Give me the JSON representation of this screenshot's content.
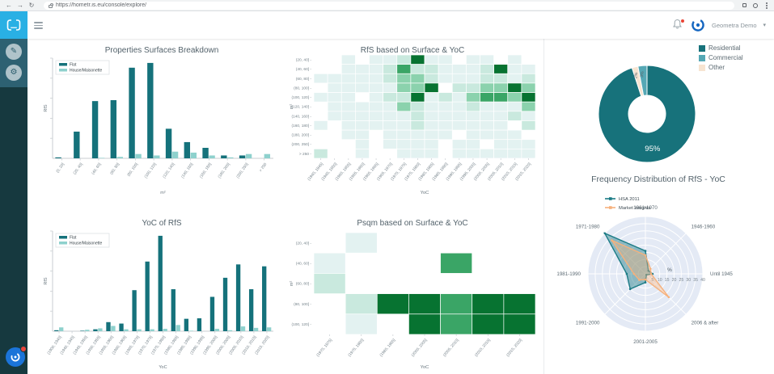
{
  "browser": {
    "url": "https://hometr.is.eu/console/explore/"
  },
  "header": {
    "user_label": "Geometra Demo",
    "menu_caret": "▾"
  },
  "chart_data": [
    {
      "id": "surfaces-breakdown",
      "type": "bar",
      "title": "Properties Surfaces Breakdown",
      "xlabel": "m²",
      "ylabel": "RfS",
      "ylim": [
        0,
        105
      ],
      "categories": [
        "(0, 20]",
        "(20, 40]",
        "(40, 60]",
        "(60, 80]",
        "(80, 100]",
        "(100, 120]",
        "(120, 140]",
        "(140, 160]",
        "(160, 180]",
        "(180, 200]",
        "(200, 250]",
        "> 250"
      ],
      "series": [
        {
          "name": "Flat",
          "color": "#15727b",
          "values": [
            1,
            28,
            60,
            61,
            95,
            100,
            31,
            17,
            11,
            3,
            3,
            0
          ]
        },
        {
          "name": "House/Maisonette",
          "color": "#8ed1cd",
          "values": [
            0,
            0,
            0.5,
            1.5,
            4.5,
            3,
            7,
            6,
            3,
            1,
            4.5,
            4.5
          ]
        }
      ]
    },
    {
      "id": "rfs-surface-yoc",
      "type": "heatmap",
      "title": "RfS based on Surface & YoC",
      "xlabel": "YoC",
      "ylabel": "m²",
      "rows": [
        "(20, 40]",
        "(40, 60]",
        "(60, 80]",
        "(80, 100]",
        "(100, 120]",
        "(120, 140]",
        "(140, 160]",
        "(160, 180]",
        "(180, 200]",
        "(200, 250]",
        "> 250"
      ],
      "cols": [
        "(1940, 1945]",
        "(1945, 1950]",
        "(1950, 1955]",
        "(1955, 1960]",
        "(1960, 1965]",
        "(1965, 1970]",
        "(1970, 1975]",
        "(1975, 1980]",
        "(1980, 1985]",
        "(1985, 1990]",
        "(1990, 1995]",
        "(1995, 2000]",
        "(2000, 2005]",
        "(2005, 2010]",
        "(2010, 2015]",
        "(2015, 2020]"
      ],
      "palette": [
        "#ffffff",
        "#e3f2f1",
        "#c9e9de",
        "#8bd2ad",
        "#3aa566",
        "#077331"
      ],
      "values": [
        [
          0,
          0,
          1,
          0,
          1,
          1,
          2,
          5,
          1,
          1,
          0,
          1,
          1,
          0,
          1,
          0
        ],
        [
          0,
          0,
          1,
          1,
          1,
          2,
          4,
          2,
          2,
          1,
          1,
          1,
          2,
          5,
          1,
          1
        ],
        [
          1,
          1,
          1,
          1,
          1,
          2,
          3,
          3,
          2,
          1,
          1,
          1,
          2,
          2,
          1,
          2
        ],
        [
          0,
          1,
          1,
          1,
          1,
          1,
          3,
          3,
          5,
          0,
          2,
          2,
          3,
          3,
          5,
          3
        ],
        [
          1,
          1,
          1,
          0,
          1,
          2,
          2,
          5,
          1,
          2,
          1,
          3,
          4,
          4,
          3,
          5
        ],
        [
          0,
          1,
          1,
          1,
          1,
          1,
          3,
          2,
          1,
          1,
          1,
          2,
          1,
          1,
          1,
          3
        ],
        [
          0,
          1,
          1,
          1,
          1,
          1,
          1,
          2,
          1,
          1,
          1,
          1,
          1,
          1,
          2,
          1
        ],
        [
          1,
          0,
          1,
          1,
          1,
          1,
          1,
          2,
          1,
          1,
          1,
          1,
          1,
          1,
          0,
          2
        ],
        [
          0,
          0,
          1,
          1,
          0,
          1,
          1,
          1,
          1,
          1,
          0,
          1,
          1,
          1,
          1,
          0
        ],
        [
          0,
          0,
          0,
          1,
          0,
          1,
          1,
          1,
          1,
          0,
          1,
          1,
          0,
          1,
          1,
          1
        ],
        [
          2,
          0,
          0,
          1,
          0,
          0,
          1,
          1,
          1,
          0,
          1,
          1,
          1,
          1,
          1,
          1
        ]
      ]
    },
    {
      "id": "property-type-donut",
      "type": "pie",
      "labels": [
        "Residential",
        "Commercial",
        "Other"
      ],
      "values": [
        95,
        3,
        2
      ],
      "colors": [
        "#17727b",
        "#55a8b5",
        "#f7e4d1"
      ]
    },
    {
      "id": "yoc-of-rfs",
      "type": "bar",
      "title": "YoC of RfS",
      "xlabel": "YoC",
      "ylabel": "RfS",
      "ylim": [
        0,
        105
      ],
      "categories": [
        "(1900, 1940]",
        "(1940, 1945]",
        "(1945, 1950]",
        "(1950, 1955]",
        "(1955, 1960]",
        "(1960, 1965]",
        "(1965, 1970]",
        "(1970, 1975]",
        "(1975, 1980]",
        "(1980, 1985]",
        "(1985, 1990]",
        "(1990, 1995]",
        "(1995, 2000]",
        "(2000, 2005]",
        "(2005, 2010]",
        "(2010, 2015]",
        "(2015, 2020]"
      ],
      "series": [
        {
          "name": "Flat",
          "color": "#15727b",
          "values": [
            1,
            0,
            0.5,
            2,
            9.5,
            8,
            43,
            73,
            100,
            44,
            13,
            13.5,
            36,
            56,
            70,
            44,
            68
          ]
        },
        {
          "name": "House/Maisonette",
          "color": "#8ed1cd",
          "values": [
            4,
            0,
            1.5,
            3,
            5.5,
            2,
            2,
            2,
            2.5,
            6.5,
            0.5,
            0,
            2.5,
            1,
            5,
            3.5,
            4
          ]
        }
      ]
    },
    {
      "id": "psqm-surface-yoc",
      "type": "heatmap",
      "title": "Psqm based on Surface & YoC",
      "xlabel": "YoC",
      "ylabel": "m²",
      "rows": [
        "(20, 40]",
        "(40, 60]",
        "(60, 80]",
        "(80, 100]",
        "(100, 120]"
      ],
      "cols": [
        "(1970, 1975]",
        "(1975, 1980]",
        "(1980, 1985]",
        "(2000, 2005]",
        "(2005, 2010]",
        "(2010, 2015]",
        "(2015, 2020]"
      ],
      "palette": [
        "#ffffff",
        "#e3f2f1",
        "#c9e9de",
        "#8bd2ad",
        "#3aa566",
        "#077331"
      ],
      "values": [
        [
          0,
          1,
          0,
          0,
          0,
          0,
          0
        ],
        [
          1,
          0,
          0,
          0,
          4,
          0,
          0
        ],
        [
          2,
          0,
          0,
          0,
          0,
          0,
          0
        ],
        [
          0,
          2,
          5,
          5,
          4,
          5,
          5
        ],
        [
          0,
          1,
          0,
          5,
          4,
          5,
          5
        ]
      ]
    },
    {
      "id": "rfs-yoc-radar",
      "type": "radar",
      "title": "Frequency Distribution of RfS - YoC",
      "axes": [
        "Until 1945",
        "1946-1960",
        "1961-1970",
        "1971-1980",
        "1981-1990",
        "1991-2000",
        "2001-2005",
        "2006 & after"
      ],
      "rmax": 40,
      "radial_ticks": [
        0,
        5,
        10,
        15,
        20,
        25,
        30,
        35,
        40
      ],
      "radial_unit": "%",
      "series": [
        {
          "name": "HSA 2011",
          "color": "#1b7b85",
          "fill": "rgba(27,123,133,0.45)",
          "values": [
            5,
            3,
            16,
            40,
            13,
            15,
            6,
            1
          ]
        },
        {
          "name": "Market Insights",
          "color": "#f6b17c",
          "fill": "rgba(246,177,124,0.4)",
          "values": [
            4,
            5,
            13,
            33,
            8,
            6,
            4,
            23
          ]
        }
      ]
    }
  ]
}
